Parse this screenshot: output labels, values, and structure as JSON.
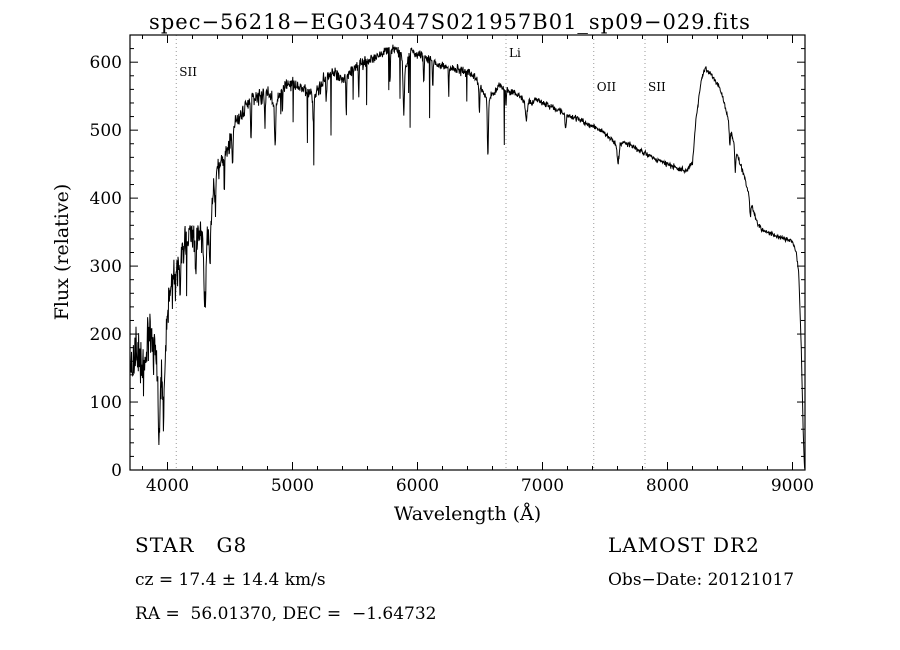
{
  "title": "spec−56218−EG034047S021957B01_sp09−029.fits",
  "footer": {
    "class_label": "STAR   G8",
    "cz": "cz = 17.4 ± 14.4 km/s",
    "radec": "RA =  56.01370, DEC =  −1.64732",
    "survey": "LAMOST DR2",
    "obs_date": "Obs−Date: 20121017"
  },
  "chart_data": {
    "type": "line",
    "title": "spec−56218−EG034047S021957B01_sp09−029.fits",
    "xlabel": "Wavelength (Å)",
    "ylabel": "Flux (relative)",
    "xlim": [
      3700,
      9100
    ],
    "ylim": [
      0,
      640
    ],
    "x_ticks": [
      4000,
      5000,
      6000,
      7000,
      8000,
      9000
    ],
    "y_ticks": [
      0,
      100,
      200,
      300,
      400,
      500,
      600
    ],
    "x_minor_step": 200,
    "y_minor_step": 20,
    "grid": false,
    "legend": "none",
    "line_color": "#000000",
    "marker_line_color": "#9a9a9a",
    "line_markers": [
      {
        "label": "SII",
        "wavelength": 4070,
        "label_y": 76
      },
      {
        "label": "Li",
        "wavelength": 6708,
        "label_y": 57
      },
      {
        "label": "OII",
        "wavelength": 7410,
        "label_y": 91
      },
      {
        "label": "SII",
        "wavelength": 7820,
        "label_y": 91
      }
    ],
    "series": [
      {
        "name": "spectrum",
        "color": "#000000",
        "envelope": [
          [
            3700,
            160
          ],
          [
            3720,
            140
          ],
          [
            3750,
            185
          ],
          [
            3780,
            150
          ],
          [
            3820,
            170
          ],
          [
            3860,
            200
          ],
          [
            3900,
            165
          ],
          [
            3935,
            120
          ],
          [
            3970,
            140
          ],
          [
            4000,
            240
          ],
          [
            4030,
            270
          ],
          [
            4070,
            290
          ],
          [
            4100,
            310
          ],
          [
            4130,
            330
          ],
          [
            4160,
            340
          ],
          [
            4200,
            345
          ],
          [
            4230,
            335
          ],
          [
            4260,
            350
          ],
          [
            4300,
            330
          ],
          [
            4340,
            360
          ],
          [
            4380,
            430
          ],
          [
            4420,
            450
          ],
          [
            4470,
            470
          ],
          [
            4520,
            500
          ],
          [
            4570,
            520
          ],
          [
            4620,
            535
          ],
          [
            4680,
            545
          ],
          [
            4740,
            550
          ],
          [
            4800,
            555
          ],
          [
            4861,
            535
          ],
          [
            4920,
            565
          ],
          [
            4980,
            570
          ],
          [
            5040,
            565
          ],
          [
            5100,
            560
          ],
          [
            5170,
            550
          ],
          [
            5250,
            575
          ],
          [
            5320,
            585
          ],
          [
            5400,
            575
          ],
          [
            5480,
            590
          ],
          [
            5560,
            600
          ],
          [
            5640,
            605
          ],
          [
            5720,
            615
          ],
          [
            5800,
            620
          ],
          [
            5860,
            615
          ],
          [
            5893,
            590
          ],
          [
            5950,
            615
          ],
          [
            6000,
            612
          ],
          [
            6080,
            605
          ],
          [
            6160,
            598
          ],
          [
            6250,
            592
          ],
          [
            6350,
            588
          ],
          [
            6450,
            580
          ],
          [
            6563,
            545
          ],
          [
            6650,
            565
          ],
          [
            6720,
            558
          ],
          [
            6800,
            552
          ],
          [
            6870,
            538
          ],
          [
            6950,
            545
          ],
          [
            7000,
            540
          ],
          [
            7100,
            532
          ],
          [
            7200,
            522
          ],
          [
            7300,
            515
          ],
          [
            7400,
            505
          ],
          [
            7500,
            496
          ],
          [
            7590,
            478
          ],
          [
            7650,
            482
          ],
          [
            7700,
            478
          ],
          [
            7800,
            468
          ],
          [
            7900,
            458
          ],
          [
            8000,
            450
          ],
          [
            8080,
            444
          ],
          [
            8150,
            440
          ],
          [
            8200,
            452
          ],
          [
            8230,
            520
          ],
          [
            8270,
            575
          ],
          [
            8300,
            590
          ],
          [
            8330,
            585
          ],
          [
            8360,
            578
          ],
          [
            8400,
            568
          ],
          [
            8440,
            550
          ],
          [
            8480,
            520
          ],
          [
            8520,
            488
          ],
          [
            8560,
            462
          ],
          [
            8600,
            440
          ],
          [
            8640,
            415
          ],
          [
            8680,
            385
          ],
          [
            8720,
            362
          ],
          [
            8760,
            352
          ],
          [
            8800,
            350
          ],
          [
            8850,
            346
          ],
          [
            8900,
            342
          ],
          [
            8950,
            340
          ],
          [
            9000,
            336
          ],
          [
            9030,
            320
          ],
          [
            9050,
            290
          ],
          [
            9070,
            180
          ],
          [
            9085,
            60
          ],
          [
            9095,
            5
          ],
          [
            9100,
            0
          ]
        ],
        "noise_amplitude": [
          [
            3700,
            55
          ],
          [
            3900,
            50
          ],
          [
            4100,
            40
          ],
          [
            4300,
            30
          ],
          [
            4500,
            22
          ],
          [
            4800,
            16
          ],
          [
            5200,
            13
          ],
          [
            5600,
            12
          ],
          [
            6000,
            10
          ],
          [
            6500,
            8
          ],
          [
            7000,
            7
          ],
          [
            7500,
            6
          ],
          [
            8000,
            5
          ],
          [
            8200,
            5
          ],
          [
            8400,
            6
          ],
          [
            8700,
            5
          ],
          [
            9000,
            4
          ],
          [
            9100,
            2
          ]
        ],
        "absorption_dips": [
          [
            3933,
            85,
            7
          ],
          [
            3968,
            65,
            7
          ],
          [
            4101,
            60,
            6
          ],
          [
            4226,
            45,
            5
          ],
          [
            4300,
            95,
            9
          ],
          [
            4340,
            55,
            6
          ],
          [
            4383,
            50,
            5
          ],
          [
            4455,
            40,
            5
          ],
          [
            4520,
            60,
            5
          ],
          [
            4668,
            55,
            5
          ],
          [
            4780,
            50,
            5
          ],
          [
            4861,
            55,
            6
          ],
          [
            4920,
            40,
            4
          ],
          [
            5167,
            45,
            6
          ],
          [
            5270,
            40,
            5
          ],
          [
            5430,
            55,
            4
          ],
          [
            5530,
            45,
            4
          ],
          [
            5780,
            50,
            4
          ],
          [
            5890,
            75,
            7
          ],
          [
            6050,
            40,
            4
          ],
          [
            6122,
            35,
            4
          ],
          [
            6250,
            35,
            4
          ],
          [
            6495,
            40,
            5
          ],
          [
            6563,
            85,
            6
          ],
          [
            6708,
            25,
            4
          ],
          [
            6870,
            25,
            9
          ],
          [
            7185,
            20,
            8
          ],
          [
            7605,
            28,
            10
          ],
          [
            8498,
            25,
            6
          ],
          [
            8542,
            32,
            6
          ],
          [
            8662,
            25,
            6
          ]
        ]
      }
    ]
  }
}
